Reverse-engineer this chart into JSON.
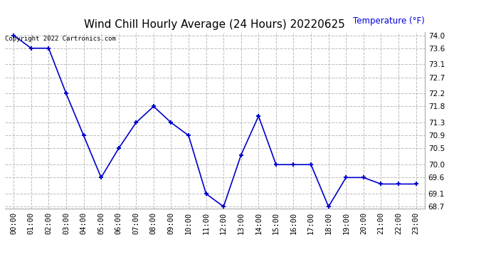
{
  "title": "Wind Chill Hourly Average (24 Hours) 20220625",
  "copyright_text": "Copyright 2022 Cartronics.com",
  "ylabel": "Temperature (°F)",
  "ylabel_color": "#0000dd",
  "hours": [
    "00:00",
    "01:00",
    "02:00",
    "03:00",
    "04:00",
    "05:00",
    "06:00",
    "07:00",
    "08:00",
    "09:00",
    "10:00",
    "11:00",
    "12:00",
    "13:00",
    "14:00",
    "15:00",
    "16:00",
    "17:00",
    "18:00",
    "19:00",
    "20:00",
    "21:00",
    "22:00",
    "23:00"
  ],
  "values": [
    74.0,
    73.6,
    73.6,
    72.2,
    70.9,
    69.6,
    70.5,
    71.3,
    71.8,
    71.3,
    70.9,
    69.1,
    68.7,
    70.3,
    71.5,
    70.0,
    70.0,
    70.0,
    68.7,
    69.6,
    69.6,
    69.4,
    69.4,
    69.4
  ],
  "line_color": "#0000cc",
  "marker": "+",
  "marker_size": 5,
  "marker_edge_width": 1.5,
  "line_width": 1.2,
  "ylim_min": 68.65,
  "ylim_max": 74.1,
  "yticks": [
    74.0,
    73.6,
    73.1,
    72.7,
    72.2,
    71.8,
    71.3,
    70.9,
    70.5,
    70.0,
    69.6,
    69.1,
    68.7
  ],
  "grid_color": "#bbbbbb",
  "grid_style": "--",
  "grid_linewidth": 0.7,
  "bg_color": "#ffffff",
  "title_fontsize": 11,
  "tick_fontsize": 7.5,
  "ylabel_fontsize": 8.5,
  "copyright_fontsize": 6.5
}
